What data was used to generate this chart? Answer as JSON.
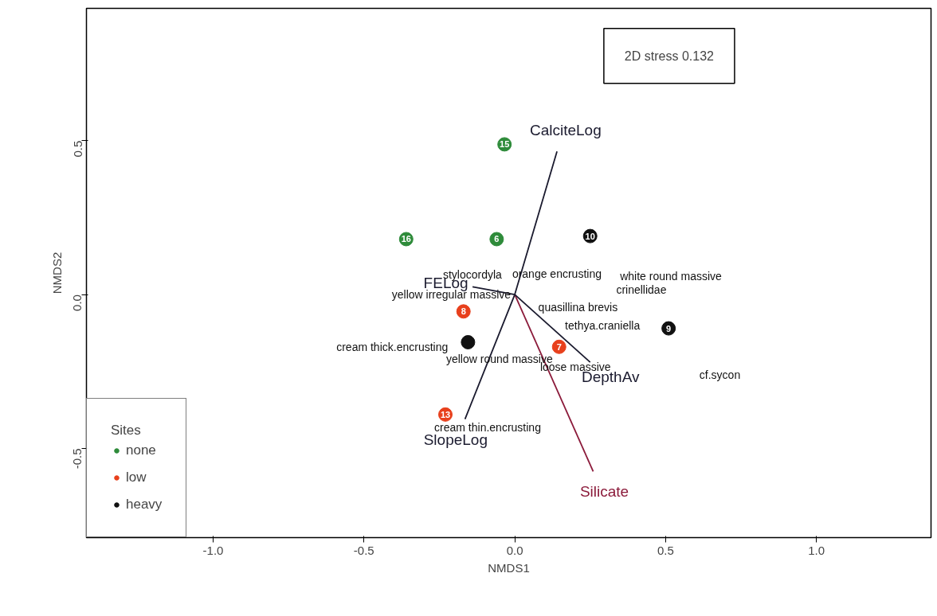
{
  "chart_data": {
    "type": "scatter",
    "xlabel": "NMDS1",
    "ylabel": "NMDS2",
    "legend_title": "Sites",
    "legend": "bottom left",
    "grid": false,
    "marker": "circle",
    "xlim": [
      -1.42,
      1.38
    ],
    "ylim": [
      -0.79,
      0.93
    ],
    "xticks": [
      {
        "value": -1,
        "label": "-1.0"
      },
      {
        "value": -0.5,
        "label": "-0.5"
      },
      {
        "value": 0,
        "label": "0.0"
      },
      {
        "value": 0.5,
        "label": "0.5"
      },
      {
        "value": 1,
        "label": "1.0"
      }
    ],
    "yticks": [
      {
        "value": -0.5,
        "label": "-0.5"
      },
      {
        "value": 0,
        "label": "0.0"
      },
      {
        "value": 0.5,
        "label": "0.5"
      }
    ],
    "series": [
      {
        "name": "none",
        "color": "#2e8b3a",
        "x": [
          -0.034,
          -0.36,
          -0.06
        ],
        "values": [
          0.488,
          0.18,
          0.18
        ]
      },
      {
        "name": "low",
        "color": "#e8401c",
        "x": [
          -0.17,
          0.147,
          -0.23
        ],
        "values": [
          -0.055,
          -0.17,
          -0.39
        ]
      },
      {
        "name": "heavy",
        "color": "#111111",
        "x": [
          0.25,
          -0.155,
          0.51
        ],
        "values": [
          0.19,
          -0.155,
          -0.11
        ]
      },
      {
        "type": "line",
        "marker": "none",
        "color": "#1a1a2e",
        "x": [
          -0.165,
          0,
          0.14
        ],
        "values": [
          -0.405,
          0,
          0.465
        ]
      },
      {
        "type": "line",
        "marker": "none",
        "color": "#8b1a3a",
        "x": [
          0,
          0.26
        ],
        "values": [
          0,
          -0.575
        ]
      },
      {
        "type": "line",
        "marker": "none",
        "color": "#1a1a2e",
        "x": [
          0,
          0.25
        ],
        "values": [
          0,
          -0.22
        ]
      },
      {
        "type": "line",
        "marker": "none",
        "color": "#1a1a2e",
        "x": [
          0,
          -0.14
        ],
        "values": [
          0,
          0.025
        ]
      }
    ],
    "annotations": [
      "2D stress 0.132",
      {
        "text": "15",
        "x": -0.034,
        "y": 0.488
      },
      {
        "text": "16",
        "x": -0.36,
        "y": 0.18
      },
      {
        "text": "6",
        "x": -0.06,
        "y": 0.18
      },
      {
        "text": "8",
        "x": -0.17,
        "y": -0.055
      },
      {
        "text": "7",
        "x": 0.147,
        "y": -0.17
      },
      {
        "text": "13",
        "x": -0.23,
        "y": -0.39
      },
      {
        "text": "10",
        "x": 0.25,
        "y": 0.19
      },
      {
        "text": "9",
        "x": 0.51,
        "y": -0.11
      },
      {
        "text": "CalciteLog",
        "x": 0.14,
        "y": 0.465
      },
      {
        "text": "SlopeLog",
        "x": -0.165,
        "y": -0.405
      },
      {
        "text": "Silicate",
        "x": 0.26,
        "y": -0.575
      },
      {
        "text": "DepthAv",
        "x": 0.25,
        "y": -0.22
      },
      {
        "text": "FELog",
        "x": -0.14,
        "y": 0.025
      },
      "stylocordyla",
      "orange encrusting",
      "white round massive",
      "crinellidae",
      "yellow irregular massive",
      "quasillina brevis",
      "tethya.craniella",
      "cream thick.encrusting",
      "yellow round massive",
      "loose massive",
      "cf.sycon",
      "cream thin.encrusting"
    ]
  }
}
